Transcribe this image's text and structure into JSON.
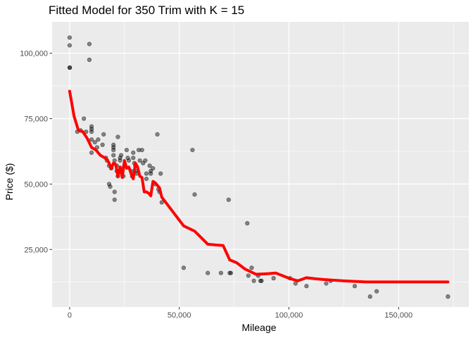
{
  "chart_data": {
    "type": "scatter",
    "title": "Fitted Model for 350 Trim with K = 15",
    "xlabel": "Mileage",
    "ylabel": "Price ($)",
    "xlim": [
      -8000,
      182000
    ],
    "ylim": [
      3000,
      112000
    ],
    "x_ticks": [
      0,
      50000,
      100000,
      150000
    ],
    "x_tick_labels": [
      "0",
      "50,000",
      "100,000",
      "150,000"
    ],
    "y_ticks": [
      25000,
      50000,
      75000,
      100000
    ],
    "y_tick_labels": [
      "25,000",
      "50,000",
      "75,000",
      "100,000"
    ],
    "grid": true,
    "panel_color": "#ebebeb",
    "point_color": "#000000",
    "point_opacity": 0.45,
    "fit_color": "#ff0000",
    "points": [
      [
        0,
        106000
      ],
      [
        0,
        103000
      ],
      [
        0,
        94500
      ],
      [
        100,
        94500
      ],
      [
        9000,
        103500
      ],
      [
        9000,
        97500
      ],
      [
        3500,
        70000
      ],
      [
        5000,
        70500
      ],
      [
        6500,
        75000
      ],
      [
        7500,
        70000
      ],
      [
        10000,
        72000
      ],
      [
        10000,
        71000
      ],
      [
        10000,
        70000
      ],
      [
        10000,
        67000
      ],
      [
        10000,
        62000
      ],
      [
        11500,
        66000
      ],
      [
        12500,
        64000
      ],
      [
        13000,
        67000
      ],
      [
        15000,
        65000
      ],
      [
        15500,
        69000
      ],
      [
        16500,
        60000
      ],
      [
        17000,
        59000
      ],
      [
        18000,
        57000
      ],
      [
        18000,
        50000
      ],
      [
        18500,
        49000
      ],
      [
        19000,
        56000
      ],
      [
        20000,
        65000
      ],
      [
        20000,
        64000
      ],
      [
        20000,
        63000
      ],
      [
        20000,
        61000
      ],
      [
        20500,
        59000
      ],
      [
        20500,
        47000
      ],
      [
        20500,
        44000
      ],
      [
        21500,
        57000
      ],
      [
        21500,
        55000
      ],
      [
        22000,
        68000
      ],
      [
        22000,
        53000
      ],
      [
        23000,
        60000
      ],
      [
        23000,
        59000
      ],
      [
        23500,
        61000
      ],
      [
        24000,
        56000
      ],
      [
        24500,
        53000
      ],
      [
        26000,
        63000
      ],
      [
        26500,
        60000
      ],
      [
        27000,
        59000
      ],
      [
        28000,
        55000
      ],
      [
        28500,
        53000
      ],
      [
        29000,
        62000
      ],
      [
        29000,
        60000
      ],
      [
        29500,
        58000
      ],
      [
        30000,
        57000
      ],
      [
        30000,
        55000
      ],
      [
        30500,
        54000
      ],
      [
        31500,
        63000
      ],
      [
        32000,
        59000
      ],
      [
        33000,
        63000
      ],
      [
        33500,
        58000
      ],
      [
        34500,
        59000
      ],
      [
        35000,
        54000
      ],
      [
        35000,
        52000
      ],
      [
        36500,
        57000
      ],
      [
        37000,
        55000
      ],
      [
        37000,
        54000
      ],
      [
        38000,
        56000
      ],
      [
        39000,
        50000
      ],
      [
        40000,
        69000
      ],
      [
        40500,
        48000
      ],
      [
        41000,
        47000
      ],
      [
        41500,
        54000
      ],
      [
        42000,
        43000
      ],
      [
        52000,
        18000
      ],
      [
        56000,
        63000
      ],
      [
        57000,
        46000
      ],
      [
        63000,
        16000
      ],
      [
        69000,
        16000
      ],
      [
        72500,
        44000
      ],
      [
        73000,
        16000
      ],
      [
        73500,
        16000
      ],
      [
        81000,
        35000
      ],
      [
        81500,
        15000
      ],
      [
        83000,
        18000
      ],
      [
        84000,
        13000
      ],
      [
        86000,
        15000
      ],
      [
        87000,
        13000
      ],
      [
        87500,
        13000
      ],
      [
        93000,
        14000
      ],
      [
        100500,
        14000
      ],
      [
        103000,
        12000
      ],
      [
        108000,
        11000
      ],
      [
        117000,
        12000
      ],
      [
        119000,
        13000
      ],
      [
        130000,
        11000
      ],
      [
        137000,
        7000
      ],
      [
        140000,
        9000
      ],
      [
        172500,
        7000
      ]
    ],
    "fit": [
      [
        0,
        85500
      ],
      [
        2000,
        76000
      ],
      [
        4000,
        70500
      ],
      [
        6000,
        70000
      ],
      [
        8000,
        67500
      ],
      [
        10000,
        64000
      ],
      [
        12000,
        63000
      ],
      [
        14000,
        61000
      ],
      [
        16000,
        60000
      ],
      [
        17000,
        59500
      ],
      [
        18000,
        58000
      ],
      [
        19000,
        56000
      ],
      [
        20000,
        58000
      ],
      [
        21000,
        57500
      ],
      [
        22000,
        53000
      ],
      [
        23000,
        56500
      ],
      [
        24000,
        52500
      ],
      [
        25000,
        59000
      ],
      [
        26000,
        56000
      ],
      [
        27000,
        56500
      ],
      [
        28000,
        54000
      ],
      [
        29000,
        52000
      ],
      [
        30000,
        58000
      ],
      [
        31000,
        56500
      ],
      [
        32000,
        53000
      ],
      [
        33000,
        52500
      ],
      [
        34000,
        47000
      ],
      [
        35000,
        47000
      ],
      [
        36000,
        46500
      ],
      [
        37000,
        45500
      ],
      [
        38000,
        51000
      ],
      [
        39000,
        50500
      ],
      [
        40000,
        49500
      ],
      [
        41000,
        48500
      ],
      [
        42000,
        45000
      ],
      [
        52000,
        34000
      ],
      [
        57000,
        32000
      ],
      [
        63000,
        27000
      ],
      [
        67000,
        26700
      ],
      [
        70000,
        26500
      ],
      [
        73000,
        21000
      ],
      [
        76000,
        20000
      ],
      [
        80000,
        17500
      ],
      [
        85000,
        15500
      ],
      [
        90000,
        15700
      ],
      [
        94000,
        16000
      ],
      [
        100000,
        14000
      ],
      [
        104000,
        13000
      ],
      [
        108000,
        14200
      ],
      [
        112000,
        13800
      ],
      [
        116000,
        13500
      ],
      [
        125000,
        13000
      ],
      [
        135000,
        12600
      ],
      [
        150000,
        12600
      ],
      [
        172500,
        12600
      ]
    ]
  }
}
